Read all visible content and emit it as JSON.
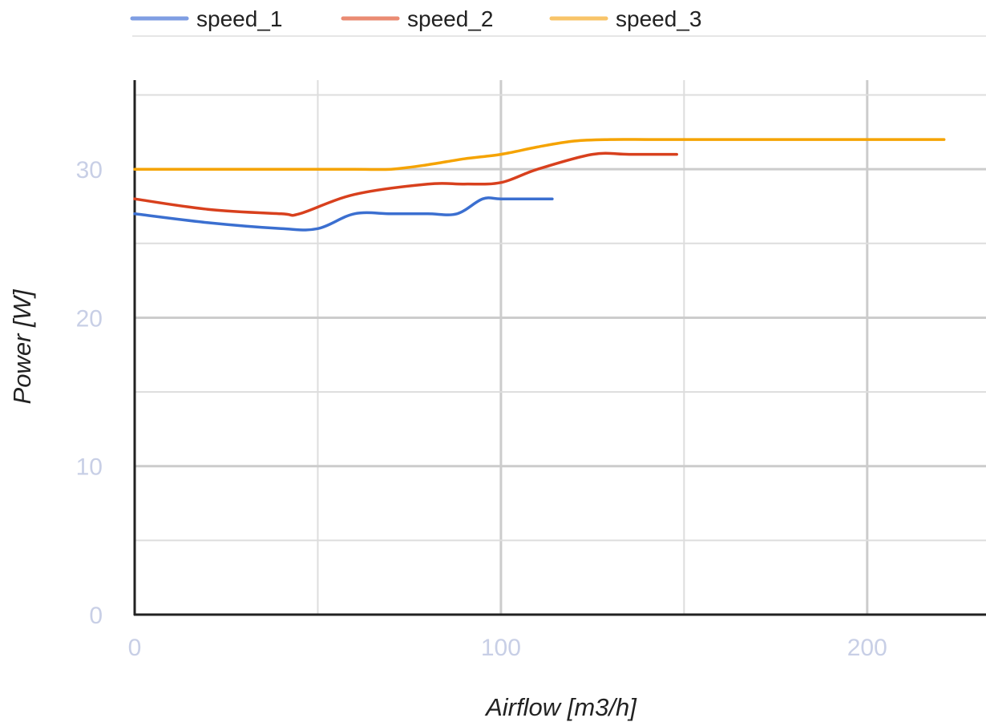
{
  "chart_data": {
    "type": "line",
    "title": "",
    "xlabel": "Airflow [m3/h]",
    "ylabel": "Power [W]",
    "xlim": [
      0,
      232
    ],
    "ylim": [
      0,
      36
    ],
    "x_ticks": [
      "0",
      "100",
      "200"
    ],
    "y_ticks": [
      "0",
      "10",
      "20",
      "30"
    ],
    "x_tick_values": [
      0,
      100,
      200
    ],
    "y_tick_values": [
      0,
      10,
      20,
      30
    ],
    "x_minor_gridlines": [
      50,
      150
    ],
    "y_minor_gridlines": [
      5,
      15,
      25,
      35
    ],
    "legend_position": "top-left",
    "grid": true,
    "colors": {
      "speed_1": "#3b6fd0",
      "speed_2": "#d8401d",
      "speed_3": "#f5a300",
      "legend_speed_1": "#7f9ee3",
      "legend_speed_2": "#ea8b73",
      "legend_speed_3": "#f8c469",
      "grid": "#dddddd",
      "grid_major": "#cccccc",
      "axis": "#222222"
    },
    "series": [
      {
        "name": "speed_1",
        "x": [
          0,
          20,
          40,
          50,
          60,
          70,
          80,
          88,
          95,
          100,
          110,
          114
        ],
        "y": [
          27,
          26.4,
          26,
          26,
          27,
          27,
          27,
          27,
          28,
          28,
          28,
          28
        ]
      },
      {
        "name": "speed_2",
        "x": [
          0,
          20,
          40,
          45,
          60,
          80,
          90,
          100,
          110,
          125,
          135,
          148
        ],
        "y": [
          28,
          27.3,
          27,
          27,
          28.3,
          29,
          29,
          29.1,
          30,
          31,
          31,
          31
        ]
      },
      {
        "name": "speed_3",
        "x": [
          0,
          20,
          40,
          60,
          70,
          80,
          90,
          100,
          110,
          120,
          130,
          140,
          150,
          200,
          221
        ],
        "y": [
          30,
          30,
          30,
          30,
          30,
          30.3,
          30.7,
          31,
          31.5,
          31.9,
          32,
          32,
          32,
          32,
          32
        ]
      }
    ]
  }
}
